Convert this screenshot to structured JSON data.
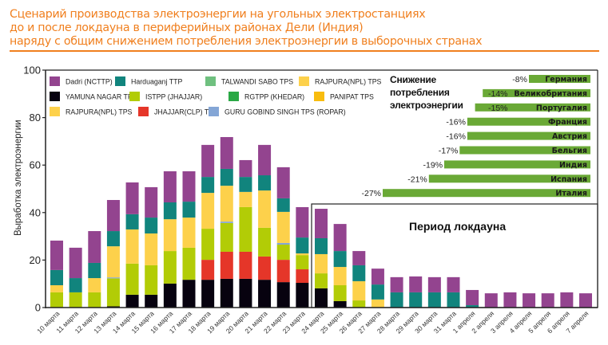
{
  "title_lines": [
    "Сценарий производства электроэнергии на угольных электростанциях",
    "до и после локдауна в периферийных районах Дели (Индия)",
    "наряду с общим снижением потребления электроэнергии в выборочных странах"
  ],
  "colors": {
    "title": "#f07f1e",
    "country_bar": "#6aa936"
  },
  "chart_data": [
    {
      "type": "bar",
      "stacked": true,
      "title": "",
      "xlabel": "",
      "ylabel": "Выработка электроэнергии",
      "ylim": [
        0,
        100
      ],
      "yticks": [
        0,
        20,
        40,
        60,
        80,
        100
      ],
      "grid": false,
      "legend_position": "top-left",
      "categories": [
        "10 марта",
        "11 марта",
        "12 марта",
        "13 марта",
        "14 марта",
        "15 марта",
        "16 марта",
        "17 марта",
        "18 марта",
        "19 марта",
        "20 марта",
        "21 марта",
        "22 марта",
        "23 марта",
        "24 марта",
        "25 марта",
        "26 марта",
        "27 марта",
        "28 марта",
        "29 марта",
        "30 марта",
        "31 марта",
        "1 апреля",
        "2 апреля",
        "3 апреля",
        "4 апреля",
        "5 апреля",
        "6 апреля",
        "7 апреля"
      ],
      "legend": [
        {
          "name": "Dadri (NCTTP)",
          "color": "#93448f"
        },
        {
          "name": "Harduaganj TTP",
          "color": "#11847d"
        },
        {
          "name": "TALWANDI SABO TPS",
          "color": "#6fc07f"
        },
        {
          "name": "RAJPURA(NPL) TPS",
          "color": "#fdd14b"
        },
        {
          "name": "YAMUNA NAGAR TPP",
          "color": "#07020f"
        },
        {
          "name": "ISTPP (JHAJJAR)",
          "color": "#b2cc06"
        },
        {
          "name": "RGTPP (KHEDAR)",
          "color": "#2aa845"
        },
        {
          "name": "PANIPAT TPS",
          "color": "#f8bc0e"
        },
        {
          "name": "RAJPURA(NPL) TPS",
          "color": "#fdd14b"
        },
        {
          "name": "JHAJJAR(CLP) TPP",
          "color": "#e53629"
        },
        {
          "name": "GURU GOBIND SINGH TPS (ROPAR)",
          "color": "#84a6d6"
        }
      ],
      "series": [
        {
          "name": "YAMUNA NAGAR TPP",
          "color": "#07020f",
          "values": [
            0,
            0,
            0,
            0.5,
            5.4,
            5.4,
            10.1,
            11.7,
            11.7,
            12.1,
            12.1,
            11.7,
            10.7,
            10.4,
            8.1,
            2.7,
            0,
            0,
            0,
            0,
            0,
            0,
            0,
            0,
            0,
            0,
            0,
            0,
            0
          ]
        },
        {
          "name": "JHAJJAR(CLP) TPP",
          "color": "#e53629",
          "values": [
            0,
            0,
            0,
            0,
            0,
            0,
            0,
            0,
            8.4,
            11.4,
            11.4,
            9.8,
            9.4,
            5.7,
            0,
            0,
            0,
            0,
            0,
            0,
            0,
            0,
            0,
            0,
            0,
            0,
            0,
            0,
            0
          ]
        },
        {
          "name": "ISTPP (JHAJJAR)",
          "color": "#b2cc06",
          "values": [
            6.4,
            6.4,
            6.4,
            11.8,
            13.1,
            12.4,
            13.7,
            13.5,
            13.1,
            12.1,
            18.8,
            12.1,
            6.4,
            6.0,
            6.3,
            6.7,
            3.0,
            0,
            0,
            0,
            0,
            0,
            0,
            0,
            0,
            0,
            0,
            0,
            0
          ]
        },
        {
          "name": "GURU GOBIND SINGH TPS (ROPAR)",
          "color": "#84a6d6",
          "values": [
            0,
            0,
            0,
            0.4,
            0,
            0,
            0,
            0,
            0,
            0.6,
            0,
            0,
            0.7,
            0,
            0,
            0,
            0,
            0,
            0,
            0,
            0,
            0,
            0,
            0,
            0,
            0,
            0,
            0,
            0
          ]
        },
        {
          "name": "RAJPURA(NPL) TPS",
          "color": "#fdd14b",
          "values": [
            3.0,
            0,
            6.0,
            13.1,
            14.4,
            13.4,
            13.4,
            12.7,
            15.1,
            15.1,
            6.4,
            15.7,
            13.1,
            0.7,
            8.1,
            7.7,
            8.1,
            3.4,
            0,
            0,
            0,
            0,
            0,
            0,
            0,
            0,
            0,
            0,
            0
          ]
        },
        {
          "name": "Harduaganj TTP",
          "color": "#11847d",
          "values": [
            6.4,
            6.0,
            6.4,
            6.4,
            6.4,
            6.7,
            7.1,
            6.7,
            6.7,
            7.1,
            6.3,
            6.4,
            5.7,
            6.7,
            6.7,
            6.7,
            6.7,
            6.3,
            6.4,
            6.4,
            6.4,
            6.4,
            1.0,
            0,
            0,
            0,
            0,
            0,
            0
          ]
        },
        {
          "name": "Dadri (NCTTP)",
          "color": "#93448f",
          "values": [
            12.4,
            12.8,
            13.4,
            13.1,
            13.4,
            12.8,
            13.1,
            12.8,
            13.5,
            13.4,
            7.1,
            12.8,
            13.1,
            12.8,
            12.4,
            11.4,
            6.0,
            6.7,
            6.4,
            6.7,
            6.4,
            6.4,
            6.4,
            6.0,
            6.4,
            6.0,
            6.0,
            6.4,
            6.0
          ]
        }
      ],
      "annotations": [
        "Период локдауна"
      ]
    },
    {
      "type": "bar",
      "orientation": "horizontal",
      "title": "Снижение потребления электроэнергии",
      "categories": [
        "Германия",
        "Великобритания",
        "Португалия",
        "Франция",
        "Австрия",
        "Бельгия",
        "Индия",
        "Испания",
        "Италия"
      ],
      "values": [
        -8,
        -14,
        -15,
        -16,
        -16,
        -17,
        -19,
        -21,
        -27
      ],
      "labels": [
        "-8%",
        "-14%",
        "-15%",
        "-16%",
        "-16%",
        "-17%",
        "-19%",
        "-21%",
        "-27%"
      ]
    }
  ]
}
